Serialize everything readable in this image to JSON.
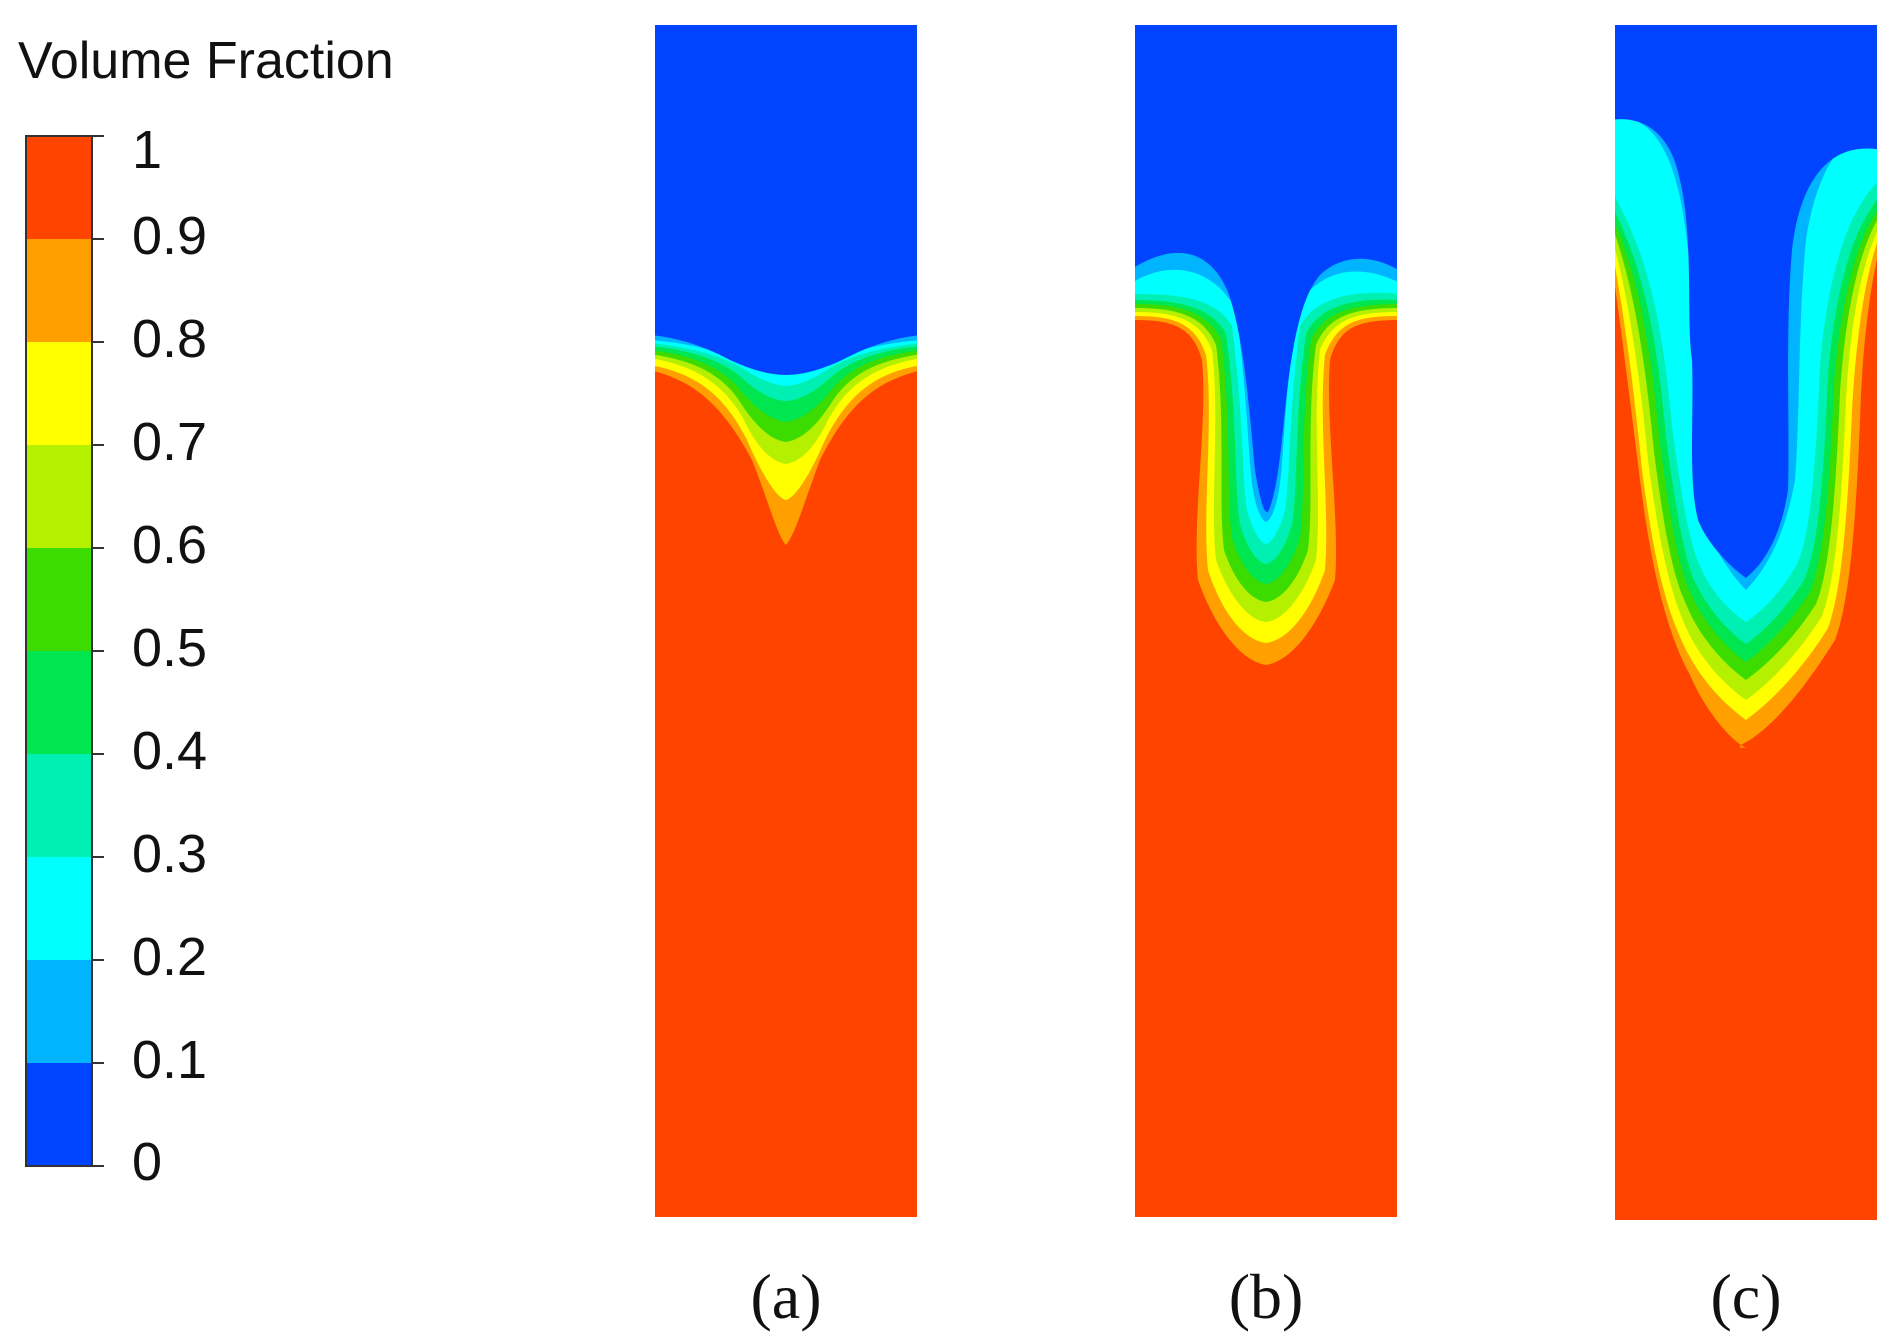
{
  "legend": {
    "title": "Volume Fraction",
    "ticks": [
      "1",
      "0.9",
      "0.8",
      "0.7",
      "0.6",
      "0.5",
      "0.4",
      "0.3",
      "0.2",
      "0.1",
      "0"
    ],
    "bands": [
      {
        "from": 0.9,
        "to": 1.0,
        "color": "#ff4400"
      },
      {
        "from": 0.8,
        "to": 0.9,
        "color": "#ffa000"
      },
      {
        "from": 0.7,
        "to": 0.8,
        "color": "#ffff00"
      },
      {
        "from": 0.6,
        "to": 0.7,
        "color": "#b4f000"
      },
      {
        "from": 0.5,
        "to": 0.6,
        "color": "#3cdc00"
      },
      {
        "from": 0.4,
        "to": 0.5,
        "color": "#00e650"
      },
      {
        "from": 0.3,
        "to": 0.4,
        "color": "#00f0b4"
      },
      {
        "from": 0.2,
        "to": 0.3,
        "color": "#00ffff"
      },
      {
        "from": 0.1,
        "to": 0.2,
        "color": "#00b4ff"
      },
      {
        "from": 0.0,
        "to": 0.1,
        "color": "#0044ff"
      }
    ]
  },
  "panels": [
    {
      "label": "(a)"
    },
    {
      "label": "(b)"
    },
    {
      "label": "(c)"
    }
  ]
}
